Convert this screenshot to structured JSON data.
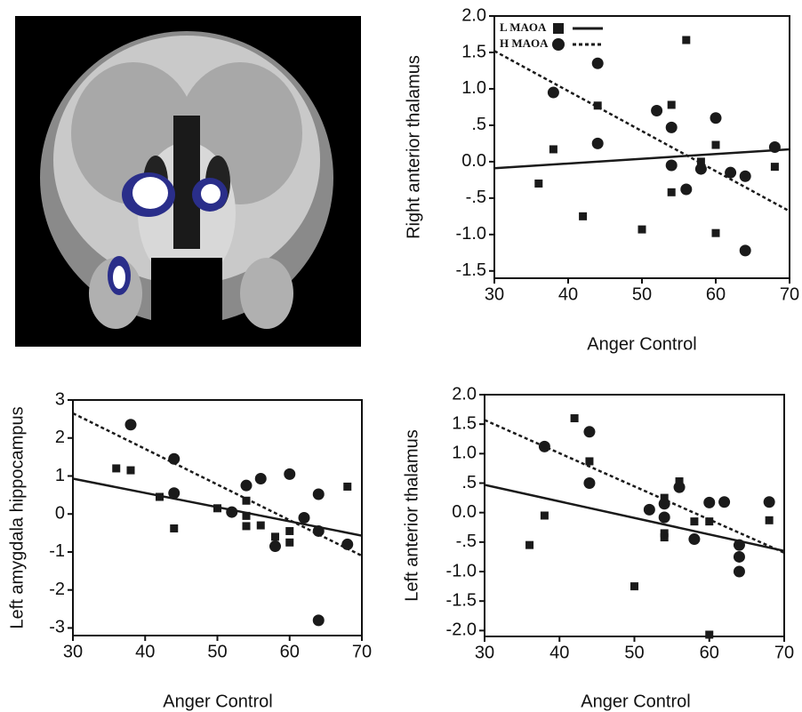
{
  "chart_data": [
    {
      "type": "scatter",
      "x_label": "Anger Control",
      "y_label": "Right anterior thalamus",
      "xlim": [
        30,
        70
      ],
      "xticks": [
        30,
        40,
        50,
        60,
        70
      ],
      "ylim": [
        -1.6,
        2.0
      ],
      "yticks": [
        {
          "value": 2.0,
          "label": "2.0"
        },
        {
          "value": 1.5,
          "label": "1.5"
        },
        {
          "value": 1.0,
          "label": "1.0"
        },
        {
          "value": 0.5,
          "label": ".5"
        },
        {
          "value": 0.0,
          "label": "0.0"
        },
        {
          "value": -0.5,
          "label": "-.5"
        },
        {
          "value": -1.0,
          "label": "-1.0"
        },
        {
          "value": -1.5,
          "label": "-1.5"
        }
      ],
      "legend": "upper left",
      "series": [
        {
          "name": "L MAOA",
          "marker": "square",
          "line_style": "solid",
          "color": "#1a1a1a",
          "x": [
            36,
            38,
            42,
            44,
            50,
            54,
            54,
            56,
            58,
            60,
            60,
            68
          ],
          "values": [
            -0.3,
            0.17,
            -0.75,
            0.77,
            -0.93,
            0.78,
            -0.42,
            1.67,
            0,
            0.23,
            -0.98,
            -0.07
          ],
          "fit_x": [
            30,
            70
          ],
          "fit_y": [
            -0.09,
            0.17
          ]
        },
        {
          "name": "H MAOA",
          "marker": "circle",
          "line_style": "dotted",
          "color": "#1a1a1a",
          "x": [
            38,
            44,
            44,
            52,
            54,
            54,
            56,
            58,
            60,
            62,
            64,
            64,
            68
          ],
          "values": [
            0.95,
            1.35,
            0.25,
            0.7,
            0.47,
            -0.05,
            -0.38,
            -0.1,
            0.6,
            -0.15,
            -0.2,
            -1.22,
            0.2
          ],
          "fit_x": [
            30,
            70
          ],
          "fit_y": [
            1.52,
            -0.68
          ]
        }
      ]
    },
    {
      "type": "scatter",
      "x_label": "Anger Control",
      "y_label": "Left amygdala hippocampus",
      "xlim": [
        30,
        70
      ],
      "xticks": [
        30,
        40,
        50,
        60,
        70
      ],
      "ylim": [
        -3.2,
        3
      ],
      "yticks": [
        3,
        2,
        1,
        0,
        -1,
        -2,
        -3
      ],
      "series": [
        {
          "marker": "square",
          "line_style": "solid",
          "color": "#1a1a1a",
          "x": [
            36,
            38,
            42,
            44,
            50,
            54,
            54,
            54,
            56,
            58,
            60,
            60,
            68
          ],
          "values": [
            1.2,
            1.15,
            0.45,
            -0.38,
            0.15,
            0.35,
            -0.05,
            -0.32,
            -0.3,
            -0.6,
            -0.45,
            -0.75,
            0.72
          ],
          "fit_x": [
            30,
            70
          ],
          "fit_y": [
            0.93,
            -0.57
          ]
        },
        {
          "marker": "circle",
          "line_style": "dotted",
          "color": "#1a1a1a",
          "x": [
            38,
            44,
            44,
            52,
            54,
            56,
            58,
            60,
            62,
            64,
            64,
            64,
            68
          ],
          "values": [
            2.35,
            1.45,
            0.55,
            0.05,
            0.75,
            0.93,
            -0.85,
            1.05,
            -0.1,
            0.52,
            -0.45,
            -2.8,
            -0.8
          ],
          "fit_x": [
            30,
            70
          ],
          "fit_y": [
            2.65,
            -1.1
          ]
        }
      ]
    },
    {
      "type": "scatter",
      "x_label": "Anger Control",
      "y_label": "Left anterior thalamus",
      "xlim": [
        30,
        70
      ],
      "xticks": [
        30,
        40,
        50,
        60,
        70
      ],
      "ylim": [
        -2.1,
        2.0
      ],
      "yticks": [
        {
          "value": 2.0,
          "label": "2.0"
        },
        {
          "value": 1.5,
          "label": "1.5"
        },
        {
          "value": 1.0,
          "label": "1.0"
        },
        {
          "value": 0.5,
          "label": ".5"
        },
        {
          "value": 0.0,
          "label": "0.0"
        },
        {
          "value": -0.5,
          "label": "-.5"
        },
        {
          "value": -1.0,
          "label": "-1.0"
        },
        {
          "value": -1.5,
          "label": "-1.5"
        },
        {
          "value": -2.0,
          "label": "-2.0"
        }
      ],
      "series": [
        {
          "marker": "square",
          "line_style": "solid",
          "color": "#1a1a1a",
          "x": [
            36,
            38,
            42,
            44,
            50,
            54,
            54,
            54,
            56,
            58,
            60,
            60,
            68
          ],
          "values": [
            -0.55,
            -0.05,
            1.6,
            0.87,
            -1.25,
            0.25,
            -0.35,
            -0.42,
            0.53,
            -0.15,
            -0.15,
            -2.07,
            -0.13
          ],
          "fit_x": [
            30,
            70
          ],
          "fit_y": [
            0.47,
            -0.65
          ]
        },
        {
          "marker": "circle",
          "line_style": "dotted",
          "color": "#1a1a1a",
          "x": [
            38,
            44,
            44,
            52,
            54,
            54,
            56,
            58,
            60,
            62,
            64,
            64,
            64,
            68
          ],
          "values": [
            1.12,
            1.37,
            0.5,
            0.05,
            0.15,
            -0.08,
            0.43,
            -0.45,
            0.17,
            0.18,
            -0.55,
            -0.75,
            -1.0,
            0.18
          ],
          "fit_x": [
            30,
            70
          ],
          "fit_y": [
            1.57,
            -0.68
          ]
        }
      ]
    }
  ]
}
